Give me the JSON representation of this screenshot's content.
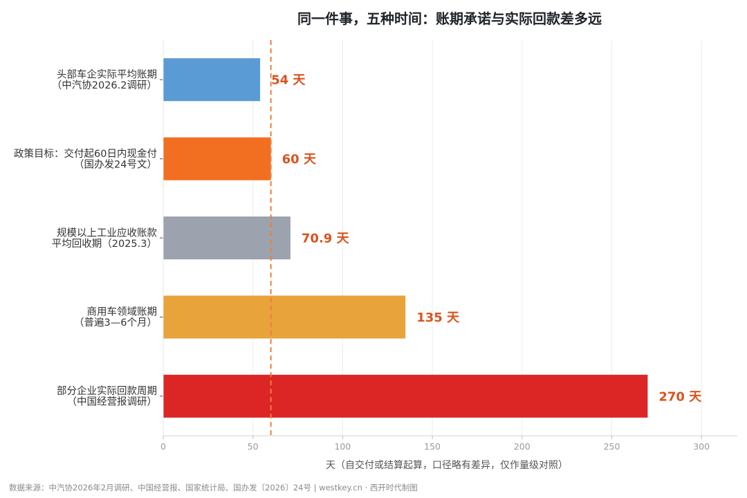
{
  "chart_data": {
    "type": "bar",
    "orientation": "horizontal",
    "title": "同一件事，五种时间：账期承诺与实际回款差多远",
    "xlabel": "天（自交付或结算起算，口径略有差异，仅作量级对照）",
    "ylabel": "",
    "xlim": [
      0,
      320
    ],
    "xticks": [
      0,
      50,
      100,
      150,
      200,
      250,
      300
    ],
    "grid": "vertical",
    "legend": "none",
    "categories": [
      [
        "头部车企实际平均账期",
        "（中汽协2026.2调研）"
      ],
      [
        "政策目标：交付起60日内现金付",
        "（国办发24号文）"
      ],
      [
        "规模以上工业应收账款",
        "平均回收期（2025.3）"
      ],
      [
        "商用车领域账期",
        "（普遍3—6个月）"
      ],
      [
        "部分企业实际回款周期",
        "（中国经营报调研）"
      ]
    ],
    "values": [
      54,
      60,
      70.9,
      135,
      270
    ],
    "value_labels": [
      "54 天",
      "60 天",
      "70.9 天",
      "135 天",
      "270 天"
    ],
    "colors": [
      "#5b9bd5",
      "#f26f21",
      "#9ca3ae",
      "#e8a33b",
      "#dc2626"
    ],
    "reference_line": {
      "value": 60,
      "color": "#f07d3a",
      "style": "dashed"
    },
    "value_label_color": "#d9541e"
  },
  "footer": "数据来源：中汽协2026年2月调研、中国经营报、国家统计局、国办发〔2026〕24号 | westkey.cn · 西开时代制图"
}
